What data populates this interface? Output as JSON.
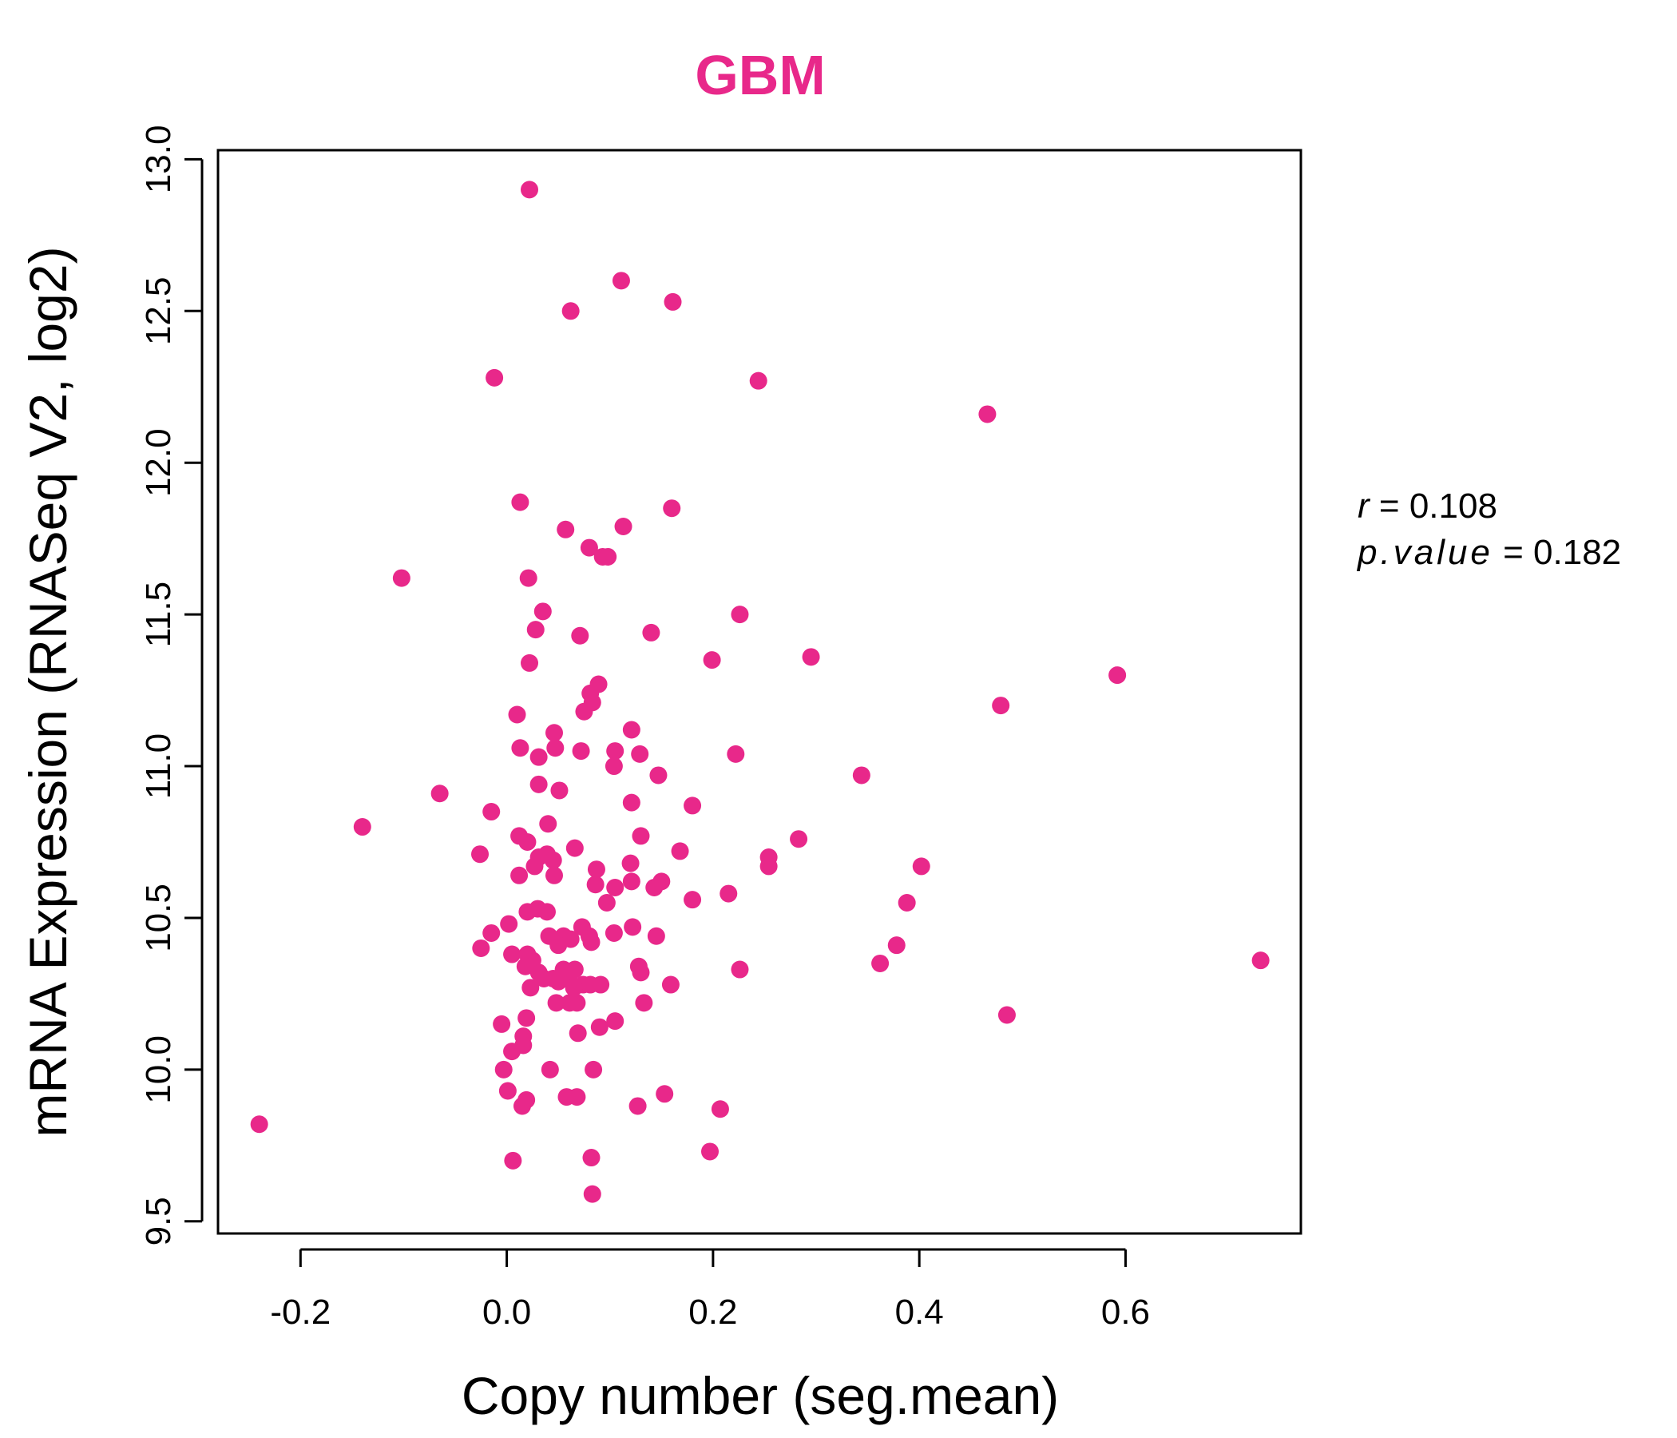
{
  "chart_data": {
    "type": "scatter",
    "title": "GBM",
    "xlabel": "Copy number (seg.mean)",
    "ylabel": "mRNA Expression (RNASeq V2, log2)",
    "xlim": [
      -0.28,
      0.77
    ],
    "ylim": [
      9.46,
      13.03
    ],
    "xticks": [
      -0.2,
      0.0,
      0.2,
      0.4,
      0.6
    ],
    "xtick_labels": [
      "-0.2",
      "0.0",
      "0.2",
      "0.4",
      "0.6"
    ],
    "yticks": [
      9.5,
      10.0,
      10.5,
      11.0,
      11.5,
      12.0,
      12.5,
      13.0
    ],
    "ytick_labels": [
      "9.5",
      "10.0",
      "10.5",
      "11.0",
      "11.5",
      "12.0",
      "12.5",
      "13.0"
    ],
    "grid": false,
    "colors": {
      "points": "#E8288A",
      "title": "#E8288A",
      "axis": "#000000"
    },
    "stats": {
      "r_label": "r",
      "r_value": "0.108",
      "p_label": "p.value",
      "p_value": "0.182"
    },
    "points": [
      [
        0.022,
        12.9
      ],
      [
        0.111,
        12.6
      ],
      [
        0.161,
        12.53
      ],
      [
        0.062,
        12.5
      ],
      [
        -0.012,
        12.28
      ],
      [
        0.244,
        12.27
      ],
      [
        0.466,
        12.16
      ],
      [
        0.013,
        11.87
      ],
      [
        0.16,
        11.85
      ],
      [
        0.057,
        11.78
      ],
      [
        0.113,
        11.79
      ],
      [
        0.08,
        11.72
      ],
      [
        0.093,
        11.69
      ],
      [
        0.098,
        11.69
      ],
      [
        -0.102,
        11.62
      ],
      [
        0.021,
        11.62
      ],
      [
        0.035,
        11.51
      ],
      [
        0.226,
        11.5
      ],
      [
        0.028,
        11.45
      ],
      [
        0.071,
        11.43
      ],
      [
        0.14,
        11.44
      ],
      [
        0.022,
        11.34
      ],
      [
        0.199,
        11.35
      ],
      [
        0.295,
        11.36
      ],
      [
        0.592,
        11.3
      ],
      [
        0.089,
        11.27
      ],
      [
        0.081,
        11.24
      ],
      [
        0.083,
        11.21
      ],
      [
        0.479,
        11.2
      ],
      [
        0.075,
        11.18
      ],
      [
        0.01,
        11.17
      ],
      [
        0.121,
        11.12
      ],
      [
        0.046,
        11.11
      ],
      [
        0.013,
        11.06
      ],
      [
        0.047,
        11.06
      ],
      [
        0.072,
        11.05
      ],
      [
        0.105,
        11.05
      ],
      [
        0.129,
        11.04
      ],
      [
        0.222,
        11.04
      ],
      [
        0.031,
        11.03
      ],
      [
        0.104,
        11.0
      ],
      [
        0.147,
        10.97
      ],
      [
        0.344,
        10.97
      ],
      [
        0.031,
        10.94
      ],
      [
        0.051,
        10.92
      ],
      [
        -0.065,
        10.91
      ],
      [
        0.121,
        10.88
      ],
      [
        0.18,
        10.87
      ],
      [
        -0.015,
        10.85
      ],
      [
        0.04,
        10.81
      ],
      [
        -0.14,
        10.8
      ],
      [
        0.13,
        10.77
      ],
      [
        0.012,
        10.77
      ],
      [
        0.02,
        10.75
      ],
      [
        0.283,
        10.76
      ],
      [
        0.066,
        10.73
      ],
      [
        0.168,
        10.72
      ],
      [
        -0.026,
        10.71
      ],
      [
        0.039,
        10.71
      ],
      [
        0.031,
        10.7
      ],
      [
        0.045,
        10.69
      ],
      [
        0.254,
        10.7
      ],
      [
        0.027,
        10.67
      ],
      [
        0.12,
        10.68
      ],
      [
        0.254,
        10.67
      ],
      [
        0.402,
        10.67
      ],
      [
        0.087,
        10.66
      ],
      [
        0.012,
        10.64
      ],
      [
        0.046,
        10.64
      ],
      [
        0.15,
        10.62
      ],
      [
        0.121,
        10.62
      ],
      [
        0.086,
        10.61
      ],
      [
        0.143,
        10.6
      ],
      [
        0.105,
        10.6
      ],
      [
        0.215,
        10.58
      ],
      [
        0.18,
        10.56
      ],
      [
        0.097,
        10.55
      ],
      [
        0.388,
        10.55
      ],
      [
        0.02,
        10.52
      ],
      [
        0.039,
        10.52
      ],
      [
        0.03,
        10.53
      ],
      [
        0.002,
        10.48
      ],
      [
        0.073,
        10.47
      ],
      [
        0.122,
        10.47
      ],
      [
        -0.015,
        10.45
      ],
      [
        0.104,
        10.45
      ],
      [
        0.041,
        10.44
      ],
      [
        0.055,
        10.44
      ],
      [
        0.08,
        10.44
      ],
      [
        0.145,
        10.44
      ],
      [
        0.062,
        10.43
      ],
      [
        0.05,
        10.41
      ],
      [
        0.082,
        10.42
      ],
      [
        0.378,
        10.41
      ],
      [
        -0.025,
        10.4
      ],
      [
        0.005,
        10.38
      ],
      [
        0.02,
        10.38
      ],
      [
        0.025,
        10.36
      ],
      [
        0.731,
        10.36
      ],
      [
        0.362,
        10.35
      ],
      [
        0.018,
        10.34
      ],
      [
        0.128,
        10.34
      ],
      [
        0.055,
        10.33
      ],
      [
        0.066,
        10.33
      ],
      [
        0.226,
        10.33
      ],
      [
        0.031,
        10.32
      ],
      [
        0.13,
        10.32
      ],
      [
        0.045,
        10.3
      ],
      [
        0.036,
        10.3
      ],
      [
        0.06,
        10.3
      ],
      [
        0.05,
        10.29
      ],
      [
        0.074,
        10.28
      ],
      [
        0.091,
        10.28
      ],
      [
        0.159,
        10.28
      ],
      [
        0.023,
        10.27
      ],
      [
        0.065,
        10.27
      ],
      [
        0.081,
        10.28
      ],
      [
        0.048,
        10.22
      ],
      [
        0.061,
        10.22
      ],
      [
        0.068,
        10.22
      ],
      [
        0.133,
        10.22
      ],
      [
        0.485,
        10.18
      ],
      [
        0.019,
        10.17
      ],
      [
        0.105,
        10.16
      ],
      [
        -0.005,
        10.15
      ],
      [
        0.09,
        10.14
      ],
      [
        0.069,
        10.12
      ],
      [
        0.016,
        10.11
      ],
      [
        0.016,
        10.08
      ],
      [
        0.005,
        10.06
      ],
      [
        -0.003,
        10.0
      ],
      [
        0.042,
        10.0
      ],
      [
        0.084,
        10.0
      ],
      [
        0.001,
        9.93
      ],
      [
        0.153,
        9.92
      ],
      [
        0.058,
        9.91
      ],
      [
        0.068,
        9.91
      ],
      [
        0.019,
        9.9
      ],
      [
        0.015,
        9.88
      ],
      [
        0.127,
        9.88
      ],
      [
        0.207,
        9.87
      ],
      [
        -0.24,
        9.82
      ],
      [
        0.197,
        9.73
      ],
      [
        0.082,
        9.71
      ],
      [
        0.006,
        9.7
      ],
      [
        0.083,
        9.59
      ]
    ]
  }
}
